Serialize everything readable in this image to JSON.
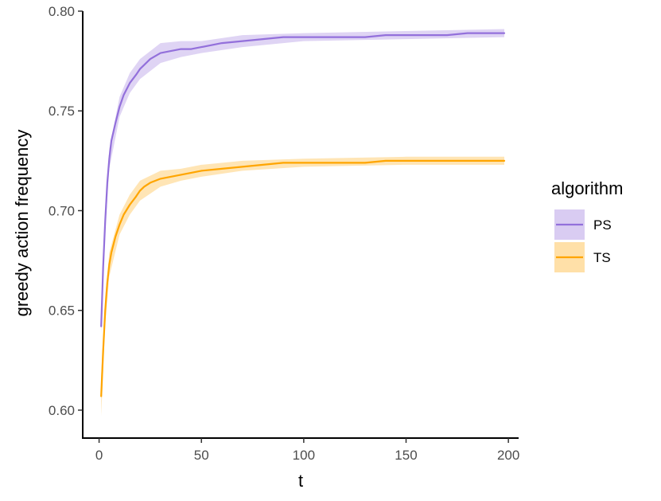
{
  "chart_data": {
    "type": "line",
    "title": "",
    "xlabel": "t",
    "ylabel": "greedy action frequency",
    "xlim": [
      -8,
      205
    ],
    "ylim": [
      0.586,
      0.8
    ],
    "x_ticks": [
      0,
      50,
      100,
      150,
      200
    ],
    "x_tick_labels": [
      "0",
      "50",
      "100",
      "150",
      "200"
    ],
    "y_ticks": [
      0.6,
      0.65,
      0.7,
      0.75,
      0.8
    ],
    "y_tick_labels": [
      "0.60",
      "0.65",
      "0.70",
      "0.75",
      "0.80"
    ],
    "grid": false,
    "legend": {
      "title": "algorithm",
      "placement": "right"
    },
    "series": [
      {
        "name": "PS",
        "color": "#9370DB",
        "band_color": "#D9CCF2",
        "points": [
          [
            1,
            0.642
          ],
          [
            2,
            0.672
          ],
          [
            3,
            0.695
          ],
          [
            4,
            0.714
          ],
          [
            5,
            0.726
          ],
          [
            6,
            0.735
          ],
          [
            8,
            0.744
          ],
          [
            10,
            0.752
          ],
          [
            12,
            0.758
          ],
          [
            15,
            0.764
          ],
          [
            18,
            0.768
          ],
          [
            20,
            0.771
          ],
          [
            22,
            0.773
          ],
          [
            25,
            0.776
          ],
          [
            30,
            0.779
          ],
          [
            35,
            0.78
          ],
          [
            40,
            0.781
          ],
          [
            45,
            0.781
          ],
          [
            50,
            0.782
          ],
          [
            60,
            0.784
          ],
          [
            70,
            0.785
          ],
          [
            80,
            0.786
          ],
          [
            90,
            0.787
          ],
          [
            100,
            0.787
          ],
          [
            110,
            0.787
          ],
          [
            120,
            0.787
          ],
          [
            130,
            0.787
          ],
          [
            140,
            0.788
          ],
          [
            150,
            0.788
          ],
          [
            160,
            0.788
          ],
          [
            170,
            0.788
          ],
          [
            180,
            0.789
          ],
          [
            190,
            0.789
          ],
          [
            198,
            0.789
          ]
        ],
        "band": [
          [
            1,
            0.638,
            0.646
          ],
          [
            3,
            0.69,
            0.7
          ],
          [
            5,
            0.721,
            0.731
          ],
          [
            10,
            0.747,
            0.757
          ],
          [
            15,
            0.759,
            0.769
          ],
          [
            20,
            0.766,
            0.776
          ],
          [
            30,
            0.774,
            0.784
          ],
          [
            40,
            0.777,
            0.785
          ],
          [
            50,
            0.779,
            0.785
          ],
          [
            70,
            0.782,
            0.788
          ],
          [
            100,
            0.785,
            0.789
          ],
          [
            150,
            0.786,
            0.79
          ],
          [
            198,
            0.787,
            0.791
          ]
        ]
      },
      {
        "name": "TS",
        "color": "#FFA500",
        "band_color": "#FFE0A8",
        "points": [
          [
            1,
            0.607
          ],
          [
            2,
            0.63
          ],
          [
            3,
            0.65
          ],
          [
            4,
            0.664
          ],
          [
            5,
            0.673
          ],
          [
            6,
            0.679
          ],
          [
            8,
            0.687
          ],
          [
            10,
            0.693
          ],
          [
            12,
            0.698
          ],
          [
            15,
            0.703
          ],
          [
            18,
            0.707
          ],
          [
            20,
            0.71
          ],
          [
            22,
            0.712
          ],
          [
            25,
            0.714
          ],
          [
            30,
            0.716
          ],
          [
            35,
            0.717
          ],
          [
            40,
            0.718
          ],
          [
            45,
            0.719
          ],
          [
            50,
            0.72
          ],
          [
            60,
            0.721
          ],
          [
            70,
            0.722
          ],
          [
            80,
            0.723
          ],
          [
            90,
            0.724
          ],
          [
            100,
            0.724
          ],
          [
            110,
            0.724
          ],
          [
            120,
            0.724
          ],
          [
            130,
            0.724
          ],
          [
            140,
            0.725
          ],
          [
            150,
            0.725
          ],
          [
            160,
            0.725
          ],
          [
            170,
            0.725
          ],
          [
            180,
            0.725
          ],
          [
            190,
            0.725
          ],
          [
            198,
            0.725
          ]
        ],
        "band": [
          [
            1,
            0.597,
            0.617
          ],
          [
            3,
            0.643,
            0.657
          ],
          [
            5,
            0.667,
            0.679
          ],
          [
            10,
            0.688,
            0.698
          ],
          [
            15,
            0.698,
            0.708
          ],
          [
            20,
            0.705,
            0.715
          ],
          [
            30,
            0.712,
            0.72
          ],
          [
            40,
            0.715,
            0.721
          ],
          [
            50,
            0.717,
            0.723
          ],
          [
            70,
            0.72,
            0.725
          ],
          [
            100,
            0.722,
            0.726
          ],
          [
            150,
            0.723,
            0.727
          ],
          [
            198,
            0.723,
            0.727
          ]
        ]
      }
    ]
  }
}
